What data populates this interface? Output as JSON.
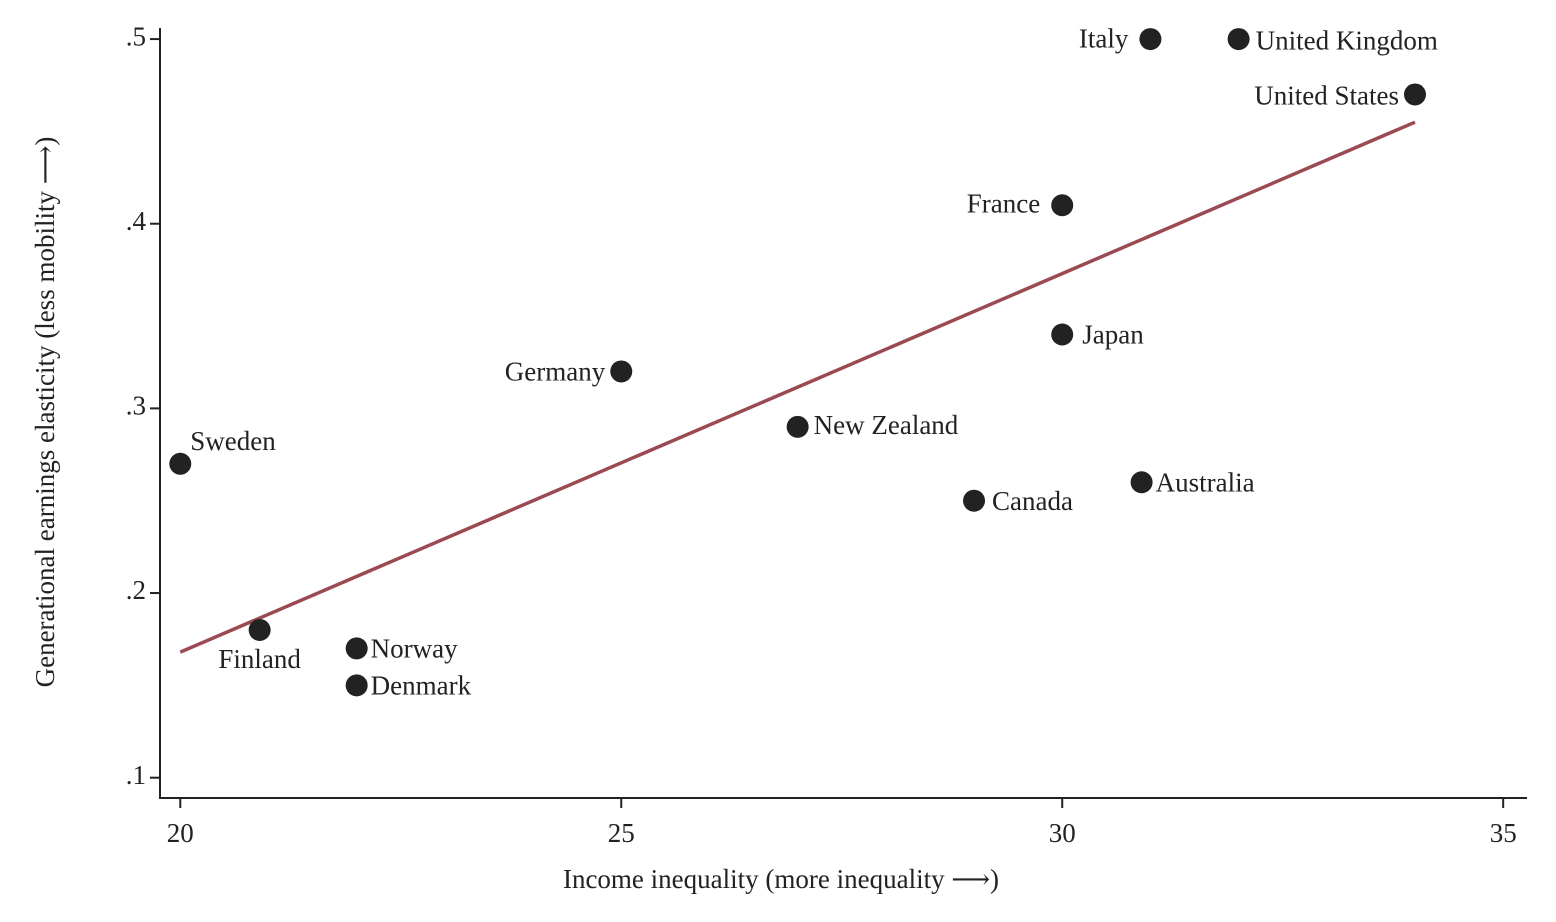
{
  "chart_data": {
    "type": "scatter",
    "x_label": "Income inequality (more inequality ⟶)",
    "y_label": "Generational earnings elasticity (less mobility ⟶)",
    "xlim": [
      19.77,
      35.27
    ],
    "ylim": [
      0.089,
      0.506
    ],
    "xticks": [
      20,
      25,
      30,
      35
    ],
    "yticks": [
      {
        "value": 0.1,
        "label": ".1"
      },
      {
        "value": 0.2,
        "label": ".2"
      },
      {
        "value": 0.3,
        "label": ".3"
      },
      {
        "value": 0.4,
        "label": ".4"
      },
      {
        "value": 0.5,
        "label": ".5"
      }
    ],
    "color": "#222222",
    "labels": [
      "Sweden",
      "Finland",
      "Norway",
      "Denmark",
      "Germany",
      "New Zealand",
      "Canada",
      "Japan",
      "France",
      "Australia",
      "Italy",
      "United Kingdom",
      "United States"
    ],
    "x": [
      20,
      20.9,
      22,
      22,
      25,
      27,
      29,
      30,
      30,
      30.9,
      31,
      32,
      34
    ],
    "values": [
      0.27,
      0.18,
      0.17,
      0.15,
      0.32,
      0.29,
      0.25,
      0.34,
      0.41,
      0.26,
      0.5,
      0.5,
      0.47
    ],
    "fit_line": {
      "color": "#9b4a52",
      "x": [
        20,
        34
      ],
      "values": [
        0.168,
        0.455
      ]
    }
  }
}
